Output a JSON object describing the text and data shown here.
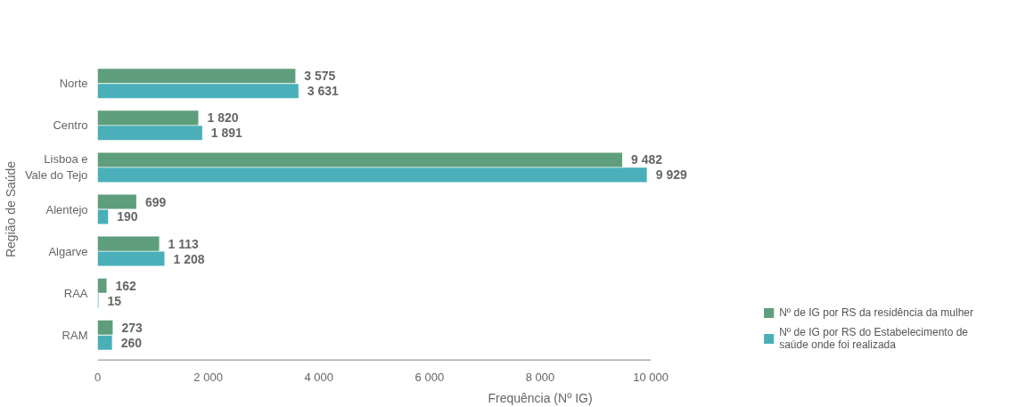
{
  "chart_data": {
    "type": "bar",
    "orientation": "horizontal",
    "xlabel": "Frequência (Nº IG)",
    "ylabel": "Região de Saúde",
    "categories": [
      "Norte",
      "Centro",
      "Lisboa e Vale do Tejo",
      "Alentejo",
      "Algarve",
      "RAA",
      "RAM"
    ],
    "series": [
      {
        "name": "Nº de IG por RS da residência da mulher",
        "color": "#5e9e7c",
        "values": [
          3575,
          1820,
          9482,
          699,
          1113,
          162,
          273
        ],
        "value_labels": [
          "3 575",
          "1 820",
          "9 482",
          "699",
          "1 113",
          "162",
          "273"
        ]
      },
      {
        "name": "Nº de IG por RS do Estabelecimento de saúde onde foi realizada",
        "color": "#4aafb9",
        "values": [
          3631,
          1891,
          9929,
          190,
          1208,
          15,
          260
        ],
        "value_labels": [
          "3 631",
          "1 891",
          "9 929",
          "190",
          "1 208",
          "15",
          "260"
        ]
      }
    ],
    "xlim": [
      0,
      10000
    ],
    "xticks": [
      0,
      {
        "value": 2000,
        "label": "2 000"
      },
      {
        "value": 4000,
        "label": "4 000"
      },
      {
        "value": 6000,
        "label": "6 000"
      },
      {
        "value": 8000,
        "label": "8 000"
      },
      {
        "value": 10000,
        "label": "10 000"
      }
    ],
    "grid": false,
    "legend": "bottom right"
  }
}
